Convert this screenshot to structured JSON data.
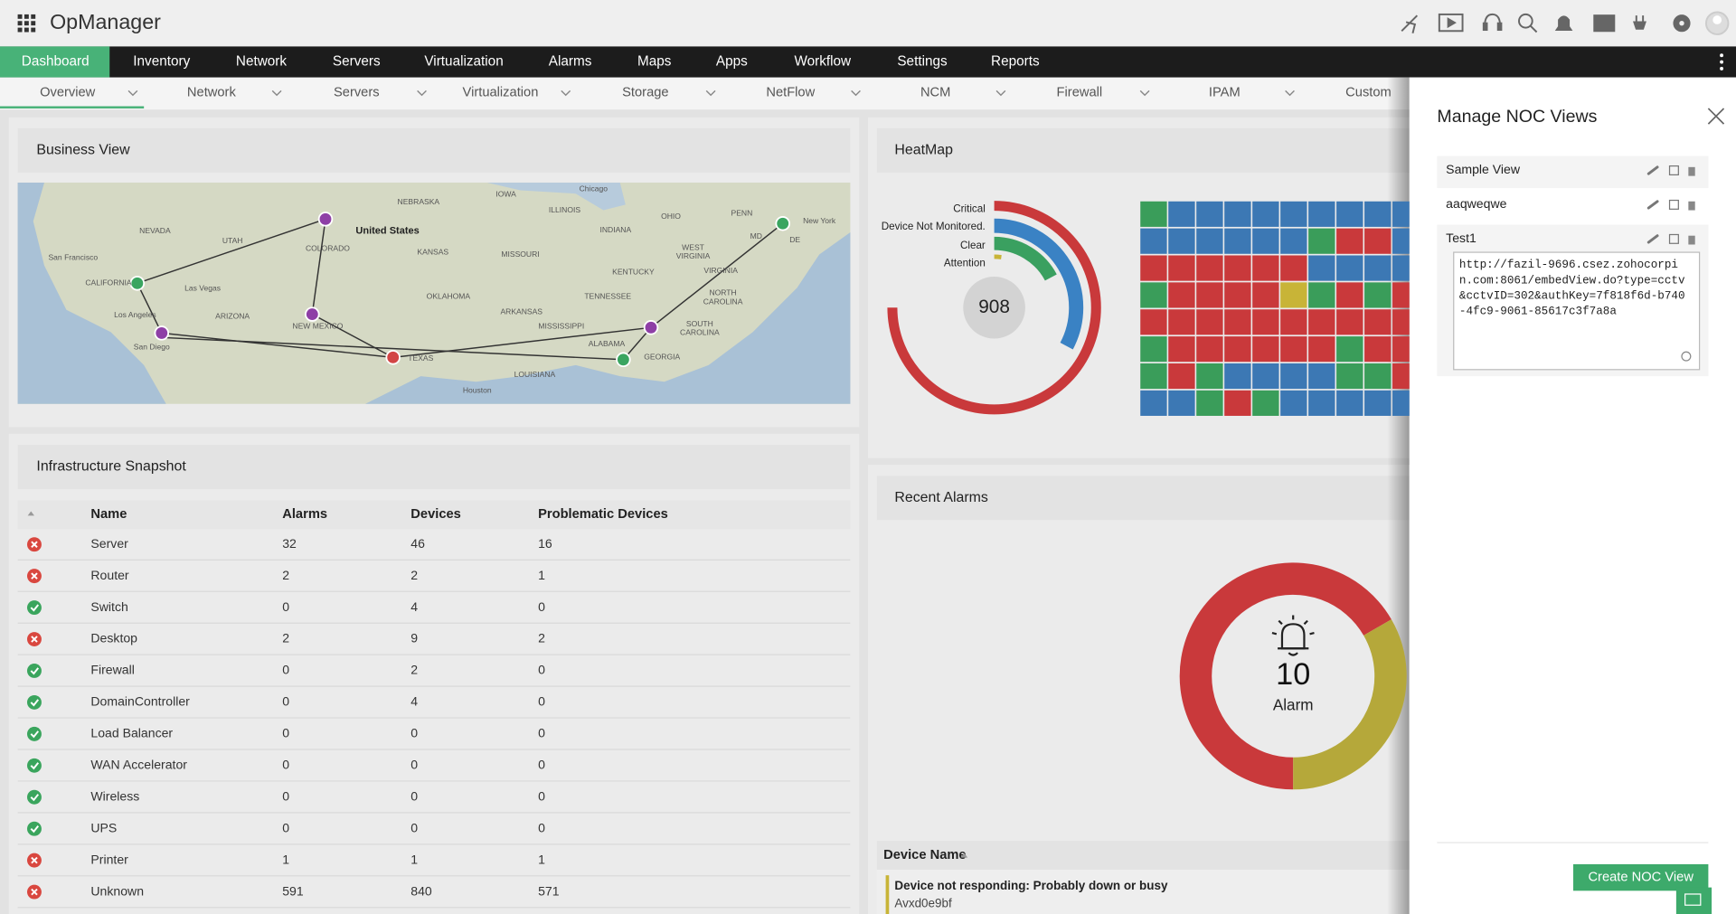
{
  "header": {
    "app_name": "OpManager"
  },
  "nav": {
    "tabs": [
      "Dashboard",
      "Inventory",
      "Network",
      "Servers",
      "Virtualization",
      "Alarms",
      "Maps",
      "Apps",
      "Workflow",
      "Settings",
      "Reports"
    ]
  },
  "sub_nav": {
    "tabs": [
      "Overview",
      "Network",
      "Servers",
      "Virtualization",
      "Storage",
      "NetFlow",
      "NCM",
      "Firewall",
      "IPAM",
      "Custom"
    ]
  },
  "business_view": {
    "title": "Business View",
    "map_labels": [
      "NEBRASKA",
      "IOWA",
      "Chicago",
      "ILLINOIS",
      "PENN",
      "New York",
      "OHIO",
      "INDIANA",
      "NEVADA",
      "UTAH",
      "United States",
      "COLORADO",
      "KANSAS",
      "MISSOURI",
      "WEST",
      "VIRGINIA",
      "San Francisco",
      "KENTUCKY",
      "VIRGINIA",
      "CALIFORNIA",
      "Las Vegas",
      "OKLAHOMA",
      "TENNESSEE",
      "NORTH",
      "CAROLINA",
      "ARIZONA",
      "ARKANSAS",
      "Los Angeles",
      "NEW MEXICO",
      "MISSISSIPPI",
      "SOUTH",
      "CAROLINA",
      "ALABAMA",
      "San Diego",
      "TEXAS",
      "GEORGIA",
      "LOUISIANA",
      "Houston",
      "MD",
      "DE"
    ]
  },
  "infrastructure_snapshot": {
    "title": "Infrastructure Snapshot",
    "columns": [
      "Name",
      "Alarms",
      "Devices",
      "Problematic Devices"
    ],
    "rows": [
      {
        "status": "error",
        "cells": [
          "Server",
          "32",
          "46",
          "16"
        ]
      },
      {
        "status": "error",
        "cells": [
          "Router",
          "2",
          "2",
          "1"
        ]
      },
      {
        "status": "ok",
        "cells": [
          "Switch",
          "0",
          "4",
          "0"
        ]
      },
      {
        "status": "error",
        "cells": [
          "Desktop",
          "2",
          "9",
          "2"
        ]
      },
      {
        "status": "ok",
        "cells": [
          "Firewall",
          "0",
          "2",
          "0"
        ]
      },
      {
        "status": "ok",
        "cells": [
          "DomainController",
          "0",
          "4",
          "0"
        ]
      },
      {
        "status": "ok",
        "cells": [
          "Load Balancer",
          "0",
          "0",
          "0"
        ]
      },
      {
        "status": "ok",
        "cells": [
          "WAN Accelerator",
          "0",
          "0",
          "0"
        ]
      },
      {
        "status": "ok",
        "cells": [
          "Wireless",
          "0",
          "0",
          "0"
        ]
      },
      {
        "status": "ok",
        "cells": [
          "UPS",
          "0",
          "0",
          "0"
        ]
      },
      {
        "status": "error",
        "cells": [
          "Printer",
          "1",
          "1",
          "1"
        ]
      },
      {
        "status": "error",
        "cells": [
          "Unknown",
          "591",
          "840",
          "571"
        ]
      }
    ]
  },
  "heatmap": {
    "title": "HeatMap",
    "legend": [
      "Critical",
      "Device Not Monitored.",
      "Clear",
      "Attention"
    ],
    "total": "908"
  },
  "recent_alarms": {
    "title": "Recent Alarms",
    "count": "10",
    "count_label": "Alarm",
    "column": "Device Name",
    "rows": [
      {
        "message": "Device not responding: Probably down or busy",
        "device": "Avxd0e9bf"
      }
    ]
  },
  "noc_panel": {
    "title": "Manage NOC Views",
    "views": [
      {
        "name": "Sample View"
      },
      {
        "name": "aaqweqwe"
      },
      {
        "name": "Test1",
        "url": "http://fazil-9696.csez.zohocorpin.com:8061/embedView.do?type=cctv&cctvID=302&authKey=7f818f6d-b740-4fc9-9061-85617c3f7a8a"
      }
    ],
    "button": "Create NOC View"
  }
}
